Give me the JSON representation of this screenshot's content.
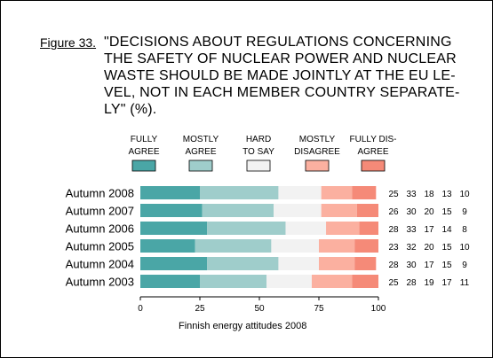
{
  "figure": {
    "label": "Figure 33.",
    "title_lines": [
      "\"DECISIONS ABOUT REGULATIONS CONCERNING",
      "THE SAFETY OF NUCLEAR POWER AND NUCLEAR",
      "WASTE SHOULD BE MADE JOINTLY AT THE EU LE-",
      "VEL, NOT IN EACH MEMBER COUNTRY SEPARATE-",
      "LY\" (%)."
    ],
    "source": "Finnish energy attitudes 2008"
  },
  "chart_data": {
    "type": "bar",
    "orientation": "horizontal",
    "stacked": true,
    "categories": [
      "Autumn 2008",
      "Autumn 2007",
      "Autumn 2006",
      "Autumn 2005",
      "Autumn 2004",
      "Autumn 2003"
    ],
    "series": [
      {
        "name": "FULLY AGREE",
        "legend_lines": [
          "FULLY",
          "AGREE"
        ],
        "color": "#4aa6a6",
        "values": [
          25,
          26,
          28,
          23,
          28,
          25
        ]
      },
      {
        "name": "MOSTLY AGREE",
        "legend_lines": [
          "MOSTLY",
          "AGREE"
        ],
        "color": "#9fcdcb",
        "values": [
          33,
          30,
          33,
          32,
          30,
          28
        ]
      },
      {
        "name": "HARD TO SAY",
        "legend_lines": [
          "HARD",
          "TO SAY"
        ],
        "color": "#f2f2f2",
        "values": [
          18,
          20,
          17,
          20,
          17,
          19
        ]
      },
      {
        "name": "MOSTLY DISAGREE",
        "legend_lines": [
          "MOSTLY",
          "DISAGREE"
        ],
        "color": "#fbb0a0",
        "values": [
          13,
          15,
          14,
          15,
          15,
          17
        ]
      },
      {
        "name": "FULLY DISAGREE",
        "legend_lines": [
          "FULLY DIS-",
          "AGREE"
        ],
        "color": "#f58a78",
        "values": [
          10,
          9,
          8,
          10,
          9,
          11
        ]
      }
    ],
    "xlim": [
      0,
      100
    ],
    "xticks": [
      0,
      25,
      50,
      75,
      100
    ],
    "xlabel": "",
    "ylabel": "",
    "data_labels_shown": true,
    "grid": false,
    "legend_position": "top"
  }
}
